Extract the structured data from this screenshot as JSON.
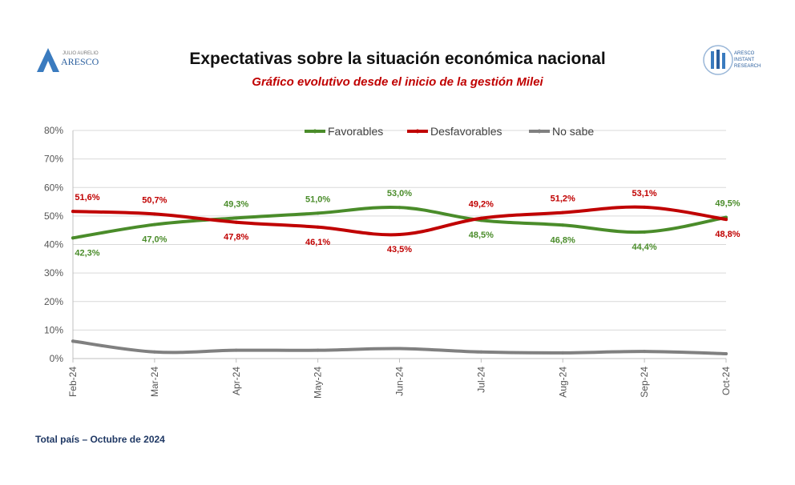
{
  "header": {
    "title": "Expectativas sobre la situación económica nacional",
    "subtitle": "Gráfico evolutivo desde el inicio de la gestión Milei",
    "logo_left_small": "JULIO AURELIO",
    "logo_left_text": "ARESCO",
    "logo_right_text": [
      "ARESCO",
      "INSTANT",
      "RESEARCH"
    ]
  },
  "footer": {
    "text": "Total país – Octubre de 2024"
  },
  "chart_data": {
    "type": "line",
    "categories": [
      "Feb-24",
      "Mar-24",
      "Apr-24",
      "May-24",
      "Jun-24",
      "Jul-24",
      "Aug-24",
      "Sep-24",
      "Oct-24"
    ],
    "ylim": [
      0,
      80
    ],
    "yticks": [
      "0%",
      "10%",
      "20%",
      "30%",
      "40%",
      "50%",
      "60%",
      "70%",
      "80%"
    ],
    "grid": true,
    "legend_position": "top",
    "series": [
      {
        "name": "Favorables",
        "color": "#4a8c2a",
        "values": [
          42.3,
          47.0,
          49.3,
          51.0,
          53.0,
          48.5,
          46.8,
          44.4,
          49.5
        ],
        "labels": [
          "42,3%",
          "47,0%",
          "49,3%",
          "51,0%",
          "53,0%",
          "48,5%",
          "46,8%",
          "44,4%",
          "49,5%"
        ]
      },
      {
        "name": "Desfavorables",
        "color": "#c00000",
        "values": [
          51.6,
          50.7,
          47.8,
          46.1,
          43.5,
          49.2,
          51.2,
          53.1,
          48.8
        ],
        "labels": [
          "51,6%",
          "50,7%",
          "47,8%",
          "46,1%",
          "43,5%",
          "49,2%",
          "51,2%",
          "53,1%",
          "48,8%"
        ]
      },
      {
        "name": "No sabe",
        "color": "#808080",
        "values": [
          6.1,
          2.3,
          2.9,
          2.9,
          3.5,
          2.3,
          2.0,
          2.5,
          1.7
        ],
        "labels": []
      }
    ]
  }
}
